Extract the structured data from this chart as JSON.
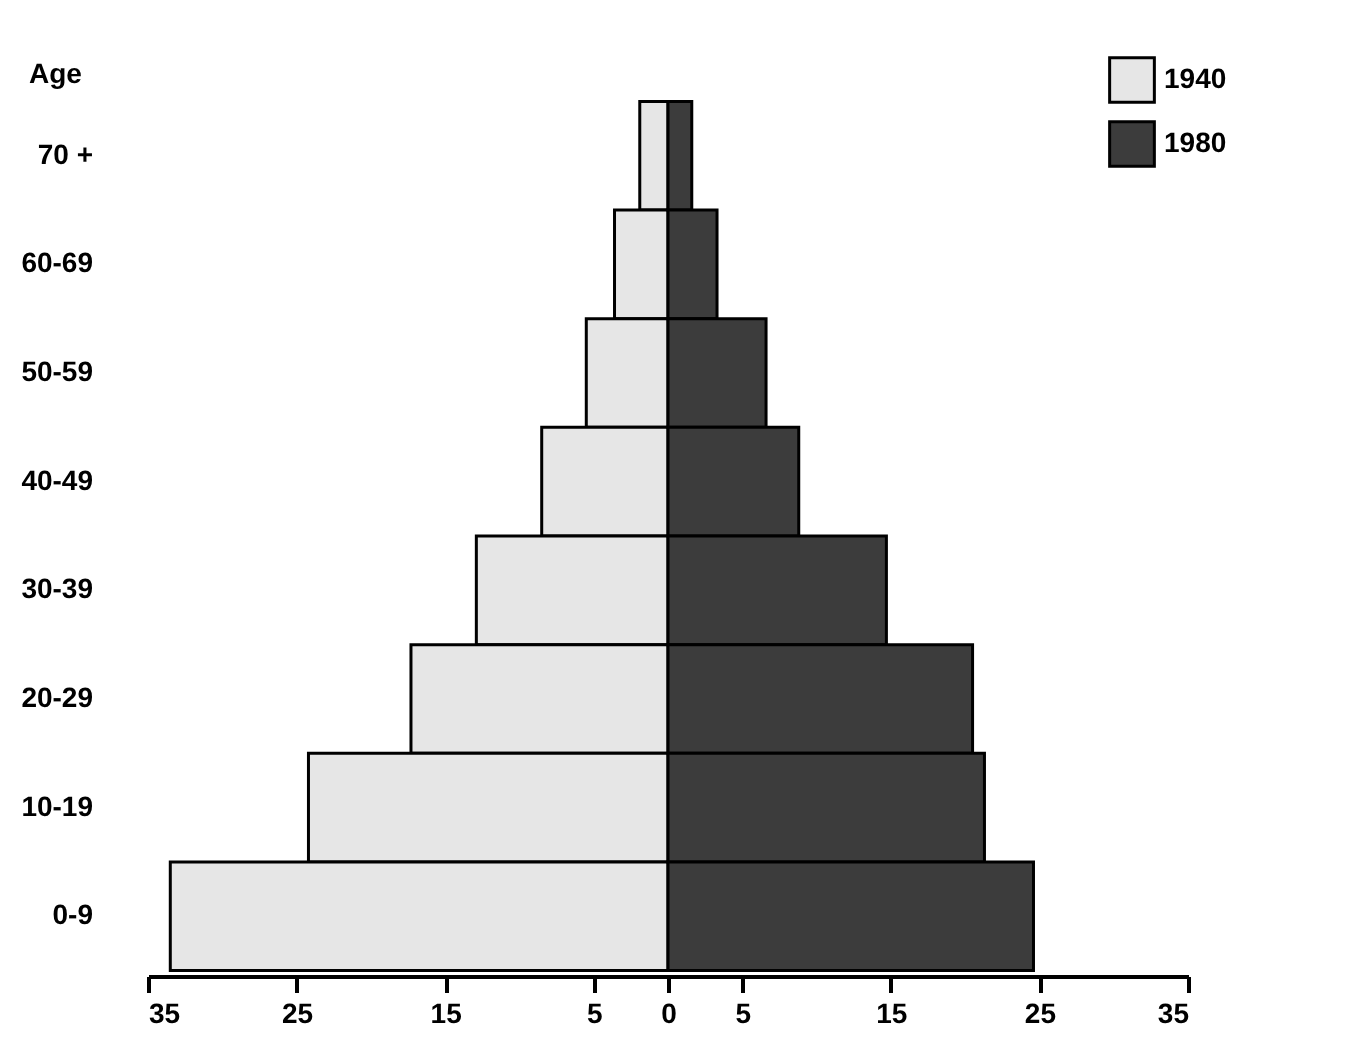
{
  "chart_data": {
    "type": "bar",
    "orientation": "horizontal",
    "ylabel": "Age",
    "categories": [
      "70 +",
      "60-69",
      "50-59",
      "40-49",
      "30-39",
      "20-29",
      "10-19",
      "0-9"
    ],
    "series": [
      {
        "name": "1940",
        "color": "#e6e6e6",
        "values": [
          -1.9,
          -3.6,
          -5.5,
          -8.5,
          -12.9,
          -17.3,
          -24.2,
          -33.5
        ]
      },
      {
        "name": "1980",
        "color": "#3c3c3c",
        "values": [
          1.6,
          3.3,
          6.6,
          8.8,
          14.7,
          20.5,
          21.3,
          24.6
        ]
      }
    ],
    "xlim": [
      -35,
      35
    ],
    "xticks": [
      {
        "value": -35,
        "label": "35"
      },
      {
        "value": -25,
        "label": "25"
      },
      {
        "value": -15,
        "label": "15"
      },
      {
        "value": -5,
        "label": "5"
      },
      0,
      5,
      15,
      25,
      35
    ],
    "stacked": true,
    "grid": false,
    "legend": "top right"
  }
}
